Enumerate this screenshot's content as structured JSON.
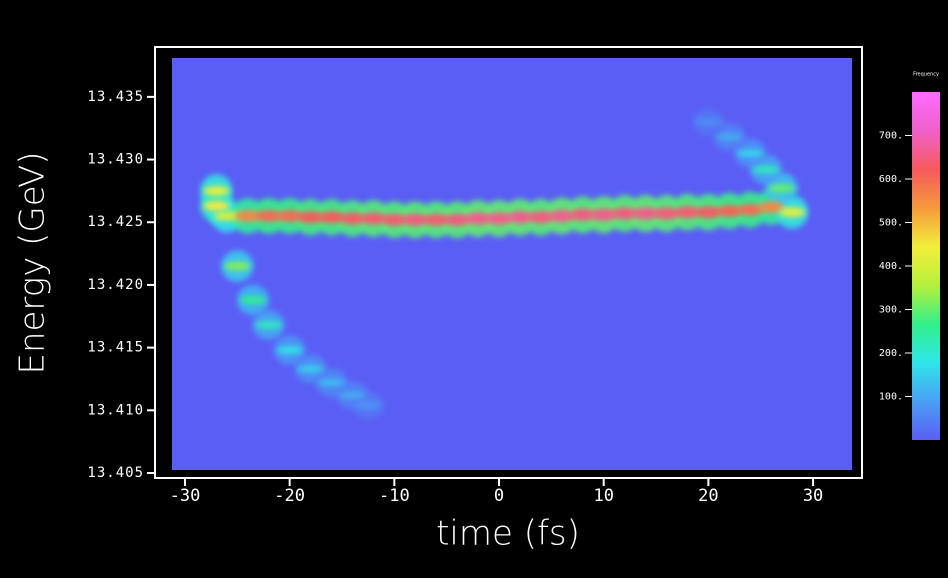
{
  "chart_data": {
    "type": "heatmap",
    "x_label": "time (fs)",
    "y_label": "Energy (GeV)",
    "colorbar_label": "Frequency",
    "xlim": [
      -31.24,
      33.72
    ],
    "ylim": [
      13.40524,
      13.4381
    ],
    "zlim": [
      0,
      800
    ],
    "xticks": [
      -30,
      -20,
      -10,
      0,
      10,
      20,
      30
    ],
    "yticks": [
      13.405,
      {
        "value": 13.41,
        "label": "13.410"
      },
      13.415,
      {
        "value": 13.42,
        "label": "13.420"
      },
      13.425,
      {
        "value": 13.43,
        "label": "13.430"
      },
      13.435
    ],
    "zticks": [
      {
        "value": 100,
        "label": "100."
      },
      {
        "value": 200,
        "label": "200."
      },
      {
        "value": 300,
        "label": "300."
      },
      {
        "value": 400,
        "label": "400."
      },
      {
        "value": 500,
        "label": "500."
      },
      {
        "value": 600,
        "label": "600."
      },
      {
        "value": 700,
        "label": "700."
      }
    ],
    "colormap": [
      "#5b5ef5",
      "#4a9ef5",
      "#2fe6ea",
      "#33ef8a",
      "#b6f03c",
      "#f3ef3c",
      "#f59a3c",
      "#f65a5c",
      "#f060cc",
      "#ff6bff"
    ],
    "background": "#5b5ef5",
    "x": [
      -27,
      -27,
      -26,
      -24,
      -22,
      -20,
      -18,
      -16,
      -14,
      -12,
      -10,
      -8,
      -6,
      -4,
      -2,
      0,
      2,
      4,
      6,
      8,
      10,
      12,
      14,
      16,
      18,
      20,
      22,
      24,
      26,
      28,
      -25,
      -23.5,
      -22,
      -20,
      -18,
      -16,
      -14,
      -12.5,
      27,
      25.5,
      24,
      22,
      20
    ],
    "y": [
      13.4275,
      13.4263,
      13.4255,
      13.4255,
      13.4255,
      13.4255,
      13.4254,
      13.4254,
      13.4253,
      13.4253,
      13.4252,
      13.4252,
      13.4252,
      13.4252,
      13.4253,
      13.4253,
      13.4254,
      13.4254,
      13.4255,
      13.4256,
      13.4256,
      13.4257,
      13.4257,
      13.4257,
      13.4258,
      13.4258,
      13.4259,
      13.426,
      13.4262,
      13.4258,
      13.4215,
      13.4188,
      13.4168,
      13.4148,
      13.4133,
      13.4122,
      13.4112,
      13.4104,
      13.4277,
      13.4292,
      13.4305,
      13.4318,
      13.433
    ],
    "z": [
      420,
      450,
      400,
      560,
      600,
      600,
      620,
      620,
      630,
      640,
      640,
      650,
      640,
      650,
      660,
      660,
      660,
      650,
      660,
      650,
      660,
      650,
      660,
      650,
      640,
      630,
      610,
      600,
      560,
      420,
      320,
      260,
      220,
      180,
      150,
      130,
      110,
      80,
      300,
      220,
      160,
      110,
      70
    ]
  }
}
